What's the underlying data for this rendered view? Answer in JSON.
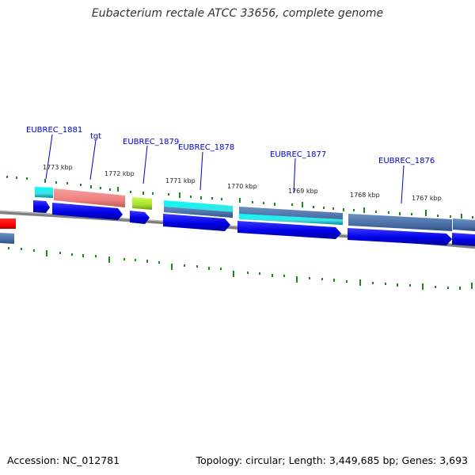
{
  "title": "Eubacterium rectale ATCC 33656, complete genome",
  "footer": {
    "accession": "Accession: NC_012781",
    "summary": "Topology: circular; Length: 3,449,685 bp; Genes: 3,693"
  },
  "gene_labels": [
    {
      "text": "EUBREC_1881",
      "color": "#0000cc"
    },
    {
      "text": "tgt",
      "color": "#0000cc"
    },
    {
      "text": "EUBREC_1879",
      "color": "#0000cc"
    },
    {
      "text": "EUBREC_1878",
      "color": "#0000cc"
    },
    {
      "text": "EUBREC_1877",
      "color": "#0000cc"
    },
    {
      "text": "EUBREC_1876",
      "color": "#0000cc"
    }
  ],
  "scale_labels": [
    "1773 kbp",
    "1772 kbp",
    "1771 kbp",
    "1770 kbp",
    "1769 kbp",
    "1768 kbp",
    "1767 kbp"
  ],
  "colors": {
    "backbone": "#808080",
    "cds": "#0000ff",
    "trna": "#ff0000",
    "tick": "#1a8a1a",
    "label_line": "#0000cc"
  }
}
